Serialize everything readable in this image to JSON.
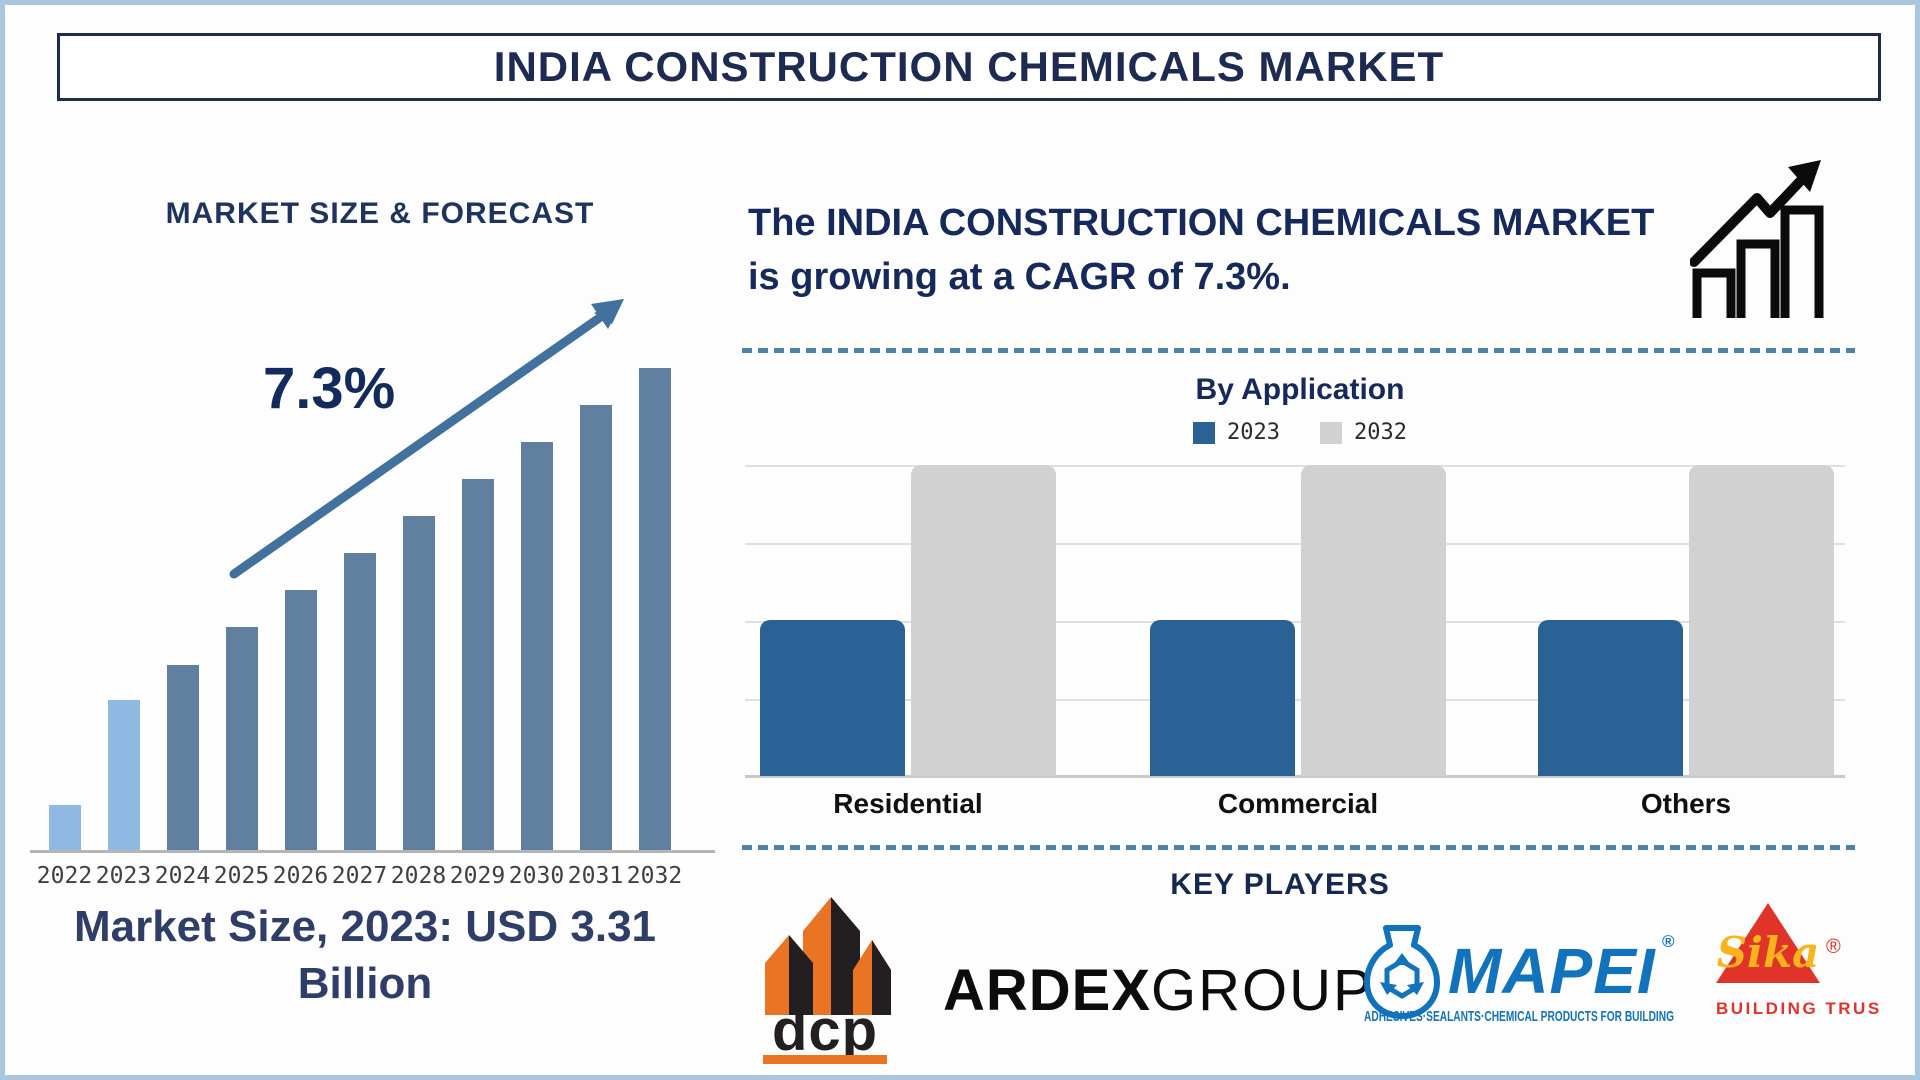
{
  "page": {
    "title": "INDIA CONSTRUCTION CHEMICALS MARKET"
  },
  "left_panel": {
    "heading": "MARKET SIZE & FORECAST",
    "cagr_annotation": "7.3%",
    "market_size_note": "Market Size, 2023: USD 3.31 Billion"
  },
  "right_panel": {
    "growth_statement": "The INDIA CONSTRUCTION CHEMICALS MARKET is growing at a CAGR of 7.3%.",
    "key_players_heading": "KEY PLAYERS"
  },
  "chart_data": [
    {
      "type": "bar",
      "title": "MARKET SIZE & FORECAST",
      "categories": [
        "2022",
        "2023",
        "2024",
        "2025",
        "2026",
        "2027",
        "2028",
        "2029",
        "2030",
        "2031",
        "2032"
      ],
      "values_relative_pct": [
        9.5,
        31.3,
        38.5,
        46.4,
        54.0,
        61.7,
        69.4,
        77.0,
        84.7,
        92.3,
        100.0
      ],
      "unit": "relative bar height, no y-axis shown",
      "annotation": "7.3% CAGR trend arrow",
      "known_point": "2023 = USD 3.31 Billion",
      "bar_colors": [
        "#8fb9e2",
        "#8fb9e2",
        "#61809f",
        "#61809f",
        "#61809f",
        "#61809f",
        "#61809f",
        "#61809f",
        "#61809f",
        "#61809f",
        "#61809f"
      ],
      "grid": false,
      "y_axis": false
    },
    {
      "type": "bar",
      "title": "By Application",
      "categories": [
        "Residential",
        "Commercial",
        "Others"
      ],
      "series": [
        {
          "name": "2023",
          "color": "#2b6295",
          "values_relative_pct": [
            50,
            50,
            50
          ]
        },
        {
          "name": "2032",
          "color": "#d1d1d1",
          "values_relative_pct": [
            100,
            100,
            100
          ]
        }
      ],
      "legend_position": "top",
      "grid": true,
      "y_axis": false
    }
  ],
  "key_players": [
    {
      "name": "DCP",
      "logo_text": "dcp",
      "colors": {
        "orange": "#e87424",
        "black": "#231f20"
      }
    },
    {
      "name": "ARDEX GROUP",
      "text_bold": "ARDEX",
      "text_light": "GROUP"
    },
    {
      "name": "MAPEI",
      "logo_text": "MAPEI",
      "registered": "®",
      "tagline": "ADHESIVES·SEALANTS·CHEMICAL PRODUCTS FOR BUILDING",
      "color": "#1173bc"
    },
    {
      "name": "Sika",
      "logo_text": "Sika",
      "registered": "®",
      "tagline": "BUILDING TRUST",
      "colors": {
        "red": "#e03329",
        "yellow": "#f9b31b"
      }
    }
  ],
  "icons": {
    "growth_chart_icon": "rising zigzag arrow over three outlined bars",
    "trend_arrow": "straight rising arrow"
  },
  "colors": {
    "navy_text": "#1d2b52",
    "dashed_separator": "#4d81a8",
    "outer_border": "#a9c6e0",
    "axis_line": "#b5b5b5"
  }
}
